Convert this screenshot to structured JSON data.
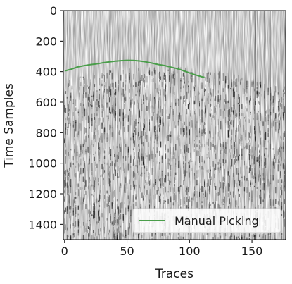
{
  "chart_data": {
    "type": "line",
    "background": "seismic-section-grayscale",
    "xlabel": "Traces",
    "ylabel": "Time Samples",
    "xlim": [
      -1,
      177
    ],
    "ylim": [
      1500,
      0
    ],
    "y_inverted": true,
    "xticks": [
      0,
      50,
      100,
      150
    ],
    "yticks": [
      0,
      200,
      400,
      600,
      800,
      1000,
      1200,
      1400
    ],
    "grid": false,
    "legend_position": "lower-right",
    "series": [
      {
        "name": "Manual Picking",
        "color": "#4a9e4a",
        "x": [
          0,
          5,
          10,
          15,
          20,
          25,
          30,
          35,
          40,
          45,
          50,
          55,
          60,
          65,
          70,
          75,
          80,
          85,
          90,
          95,
          100,
          105,
          110,
          112
        ],
        "y": [
          395,
          385,
          370,
          362,
          355,
          350,
          343,
          337,
          332,
          328,
          326,
          327,
          330,
          336,
          344,
          353,
          360,
          370,
          380,
          393,
          408,
          422,
          434,
          437
        ]
      }
    ]
  }
}
